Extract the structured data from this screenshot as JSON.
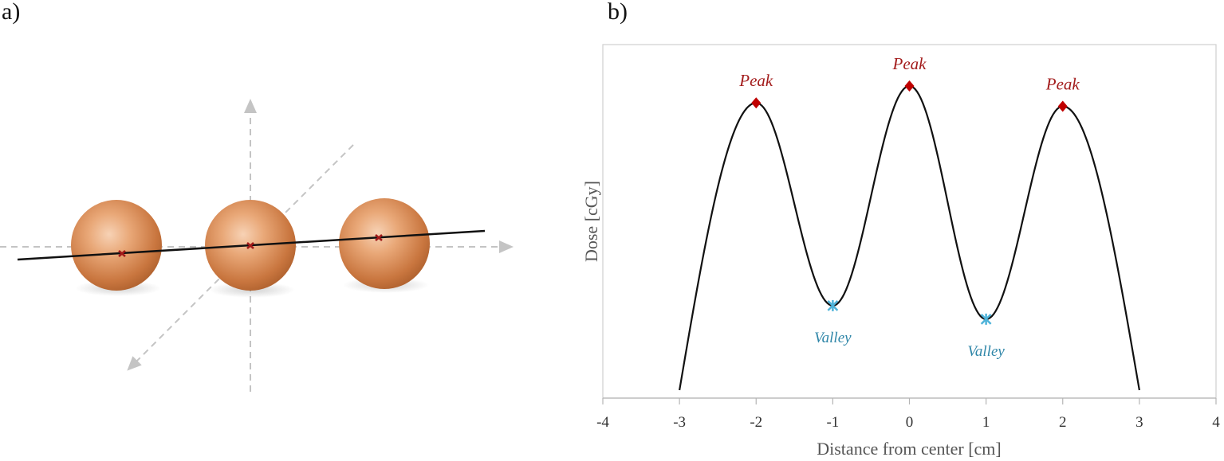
{
  "panels": {
    "a": "a)",
    "b": "b)"
  },
  "colors": {
    "sphere": "#d98a55",
    "sphere_center_marker": "#a11a1a",
    "guide_axes": "#c4c4c4",
    "profile_line": "#111111",
    "peak_marker": "#c00000",
    "valley_marker": "#4fb3d9",
    "peak_text": "#a31c1c",
    "valley_text": "#2f86a8"
  },
  "chart_data": {
    "type": "line",
    "title": "",
    "xlabel": "Distance from center [cm]",
    "ylabel": "Dose [cGy]",
    "xlim": [
      -4,
      4
    ],
    "xticks": [
      -4,
      -3,
      -2,
      -1,
      0,
      1,
      2,
      3,
      4
    ],
    "yticks_shown": false,
    "grid": false,
    "legend": "none",
    "series": [
      {
        "x": [
          -3,
          -2,
          -1,
          0,
          1,
          2,
          3
        ],
        "y": [
          0.0,
          0.85,
          0.25,
          0.9,
          0.21,
          0.84,
          0.0
        ]
      }
    ],
    "annotations": [
      {
        "label": "Peak",
        "kind": "peak",
        "x": -2,
        "y": 0.85
      },
      {
        "label": "Peak",
        "kind": "peak",
        "x": 0,
        "y": 0.9
      },
      {
        "label": "Peak",
        "kind": "peak",
        "x": 2,
        "y": 0.84
      },
      {
        "label": "Valley",
        "kind": "valley",
        "x": -1,
        "y": 0.25
      },
      {
        "label": "Valley",
        "kind": "valley",
        "x": 1,
        "y": 0.21
      }
    ]
  }
}
